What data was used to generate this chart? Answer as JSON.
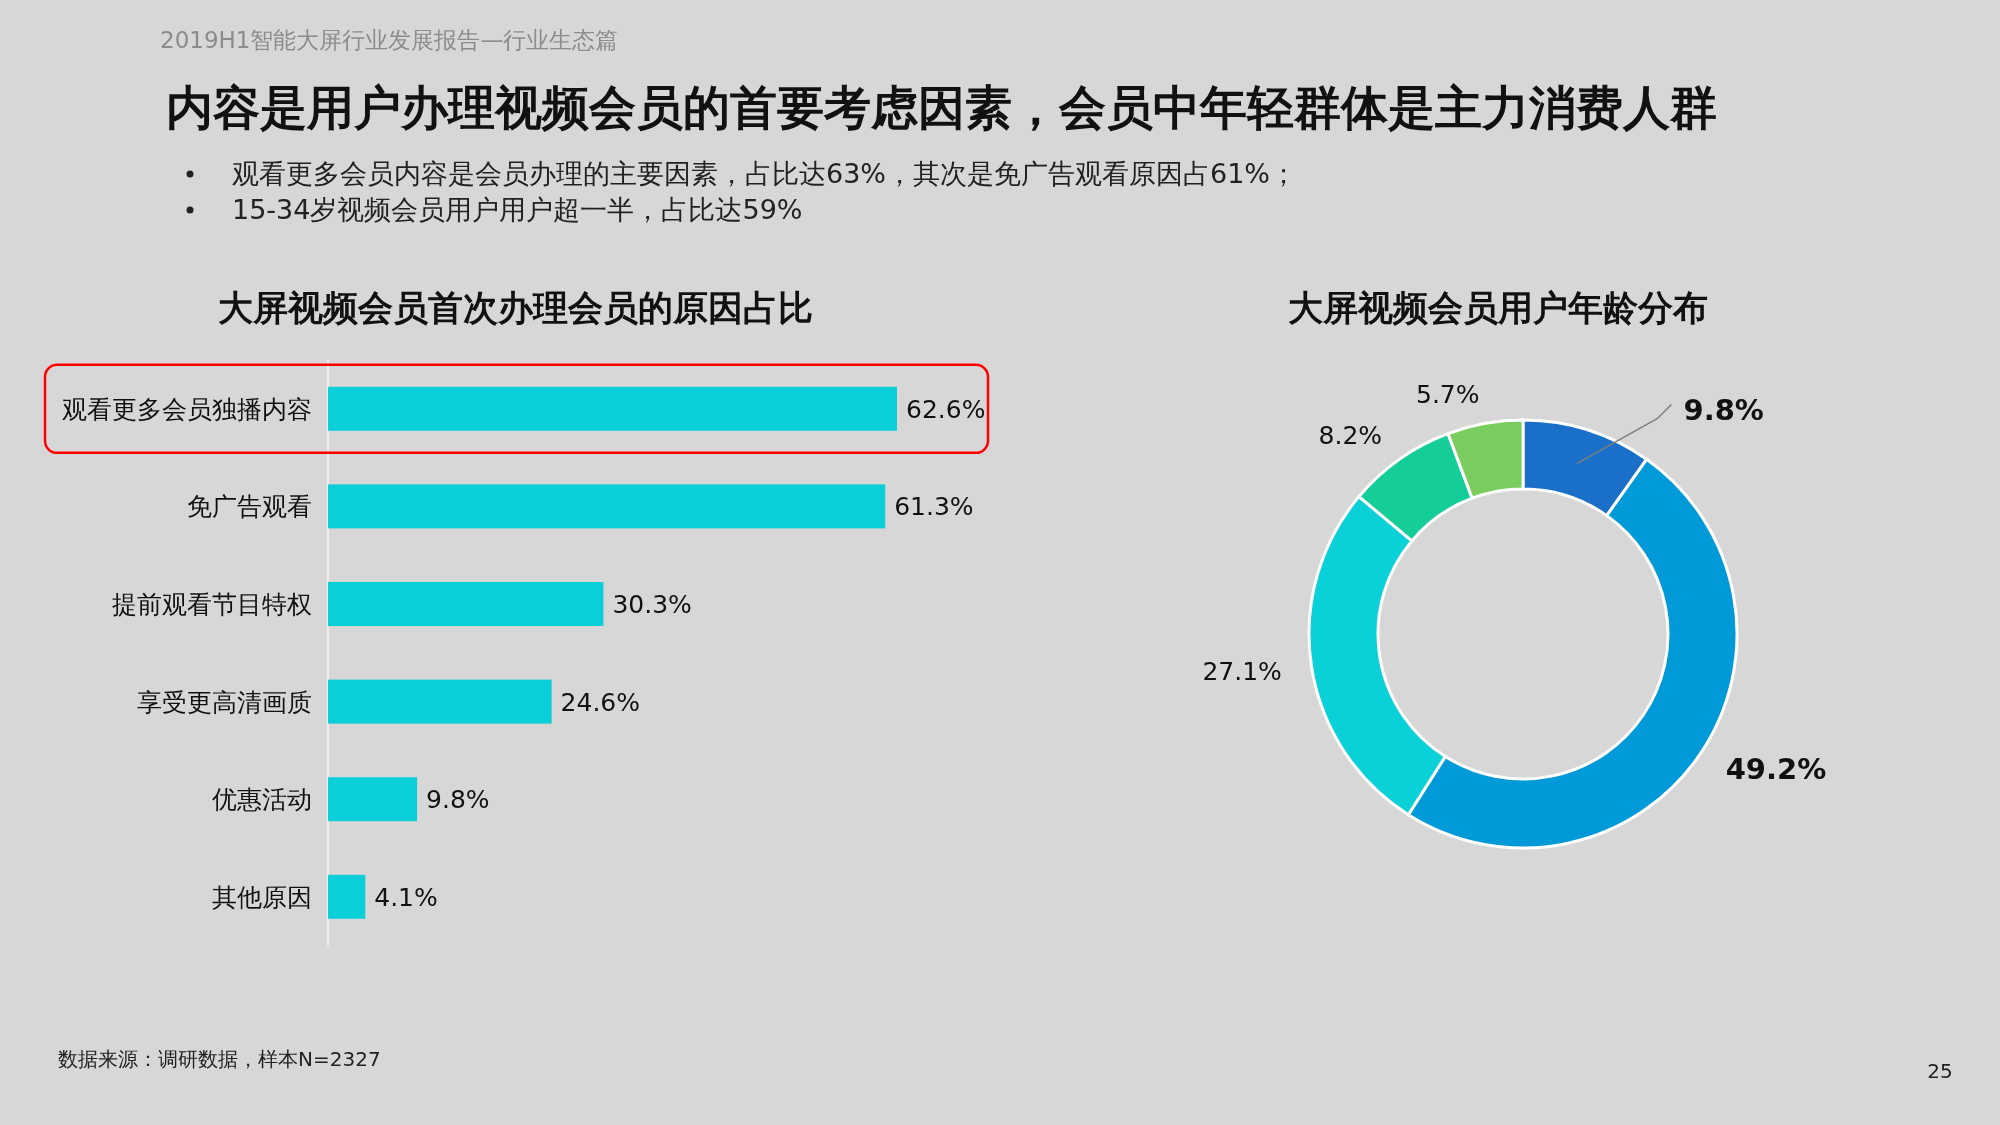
{
  "chart_data": [
    {
      "type": "other",
      "title": "内容是用户办理视频会员的首要考虑因素，会员中年轻群体是主力消费人群",
      "subtitle": "2019H1智能大屏行业发展报告—行业生态篇",
      "annotations": [
        "观看更多会员内容是会员办理的主要因素，占比达63%，其次是免广告观看原因占61%；",
        "15-34岁视频会员用户用户超一半，占比达59%",
        "数据来源：调研数据，样本N=2327",
        "25"
      ]
    },
    {
      "type": "bar",
      "orientation": "horizontal",
      "title": "大屏视频会员首次办理会员的原因占比",
      "categories": [
        "观看更多会员独播内容",
        "免广告观看",
        "提前观看节目特权",
        "享受更高清画质",
        "优惠活动",
        "其他原因"
      ],
      "values": [
        62.6,
        61.3,
        30.3,
        24.6,
        9.8,
        4.1
      ],
      "color": "#0acfd8",
      "value_labels": [
        "62.6%",
        "61.3%",
        "30.3%",
        "24.6%",
        "9.8%",
        "4.1%"
      ]
    },
    {
      "type": "donut",
      "title": "大屏视频会员用户年龄分布",
      "categories": [
        null,
        null,
        null,
        null,
        null
      ],
      "values": [
        9.8,
        49.2,
        27.1,
        8.2,
        5.7
      ],
      "colors": [
        "#1a6fc9",
        "#009ad8",
        "#0ad0d8",
        "#14cd98",
        "#7acc5e"
      ],
      "value_labels": [
        "9.8%",
        "49.2%",
        "27.1%",
        "8.2%",
        "5.7%"
      ]
    }
  ]
}
